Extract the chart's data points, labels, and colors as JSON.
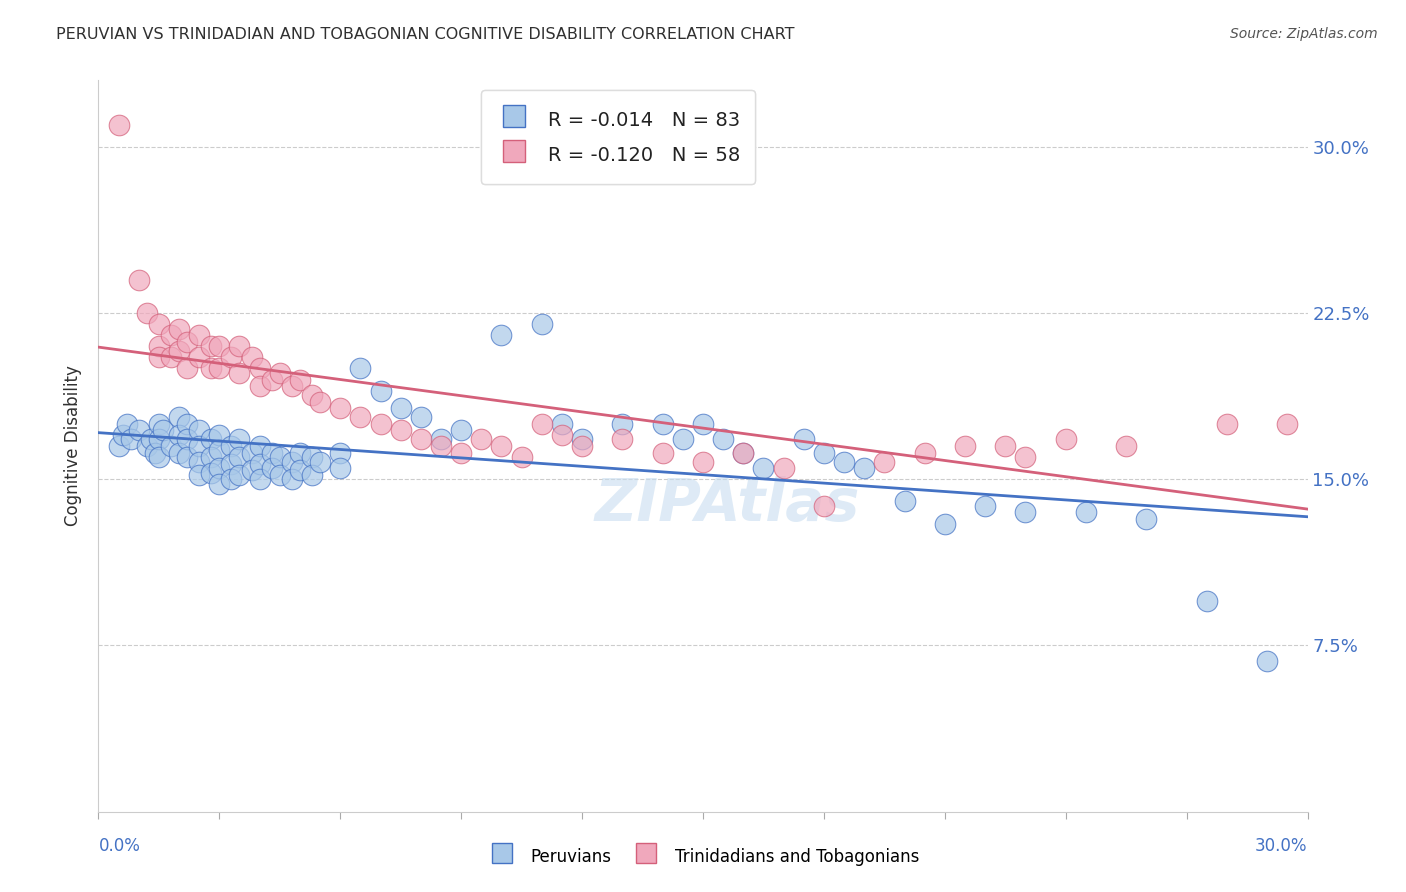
{
  "title": "PERUVIAN VS TRINIDADIAN AND TOBAGONIAN COGNITIVE DISABILITY CORRELATION CHART",
  "source": "Source: ZipAtlas.com",
  "ylabel": "Cognitive Disability",
  "blue_color": "#a8c8e8",
  "pink_color": "#f0a8bc",
  "blue_line_color": "#4472c4",
  "pink_line_color": "#d4607a",
  "title_color": "#303030",
  "axis_label_color": "#4472c4",
  "xlim": [
    0.0,
    0.3
  ],
  "ylim": [
    0.0,
    0.33
  ],
  "yticks": [
    0.075,
    0.15,
    0.225,
    0.3
  ],
  "ytick_labels": [
    "7.5%",
    "15.0%",
    "22.5%",
    "30.0%"
  ],
  "peruvians": [
    [
      0.005,
      0.165
    ],
    [
      0.006,
      0.17
    ],
    [
      0.007,
      0.175
    ],
    [
      0.008,
      0.168
    ],
    [
      0.01,
      0.172
    ],
    [
      0.012,
      0.165
    ],
    [
      0.013,
      0.168
    ],
    [
      0.014,
      0.162
    ],
    [
      0.015,
      0.175
    ],
    [
      0.015,
      0.168
    ],
    [
      0.015,
      0.16
    ],
    [
      0.016,
      0.172
    ],
    [
      0.018,
      0.165
    ],
    [
      0.02,
      0.178
    ],
    [
      0.02,
      0.17
    ],
    [
      0.02,
      0.162
    ],
    [
      0.022,
      0.175
    ],
    [
      0.022,
      0.168
    ],
    [
      0.022,
      0.16
    ],
    [
      0.025,
      0.172
    ],
    [
      0.025,
      0.165
    ],
    [
      0.025,
      0.158
    ],
    [
      0.025,
      0.152
    ],
    [
      0.028,
      0.168
    ],
    [
      0.028,
      0.16
    ],
    [
      0.028,
      0.153
    ],
    [
      0.03,
      0.17
    ],
    [
      0.03,
      0.163
    ],
    [
      0.03,
      0.155
    ],
    [
      0.03,
      0.148
    ],
    [
      0.033,
      0.165
    ],
    [
      0.033,
      0.157
    ],
    [
      0.033,
      0.15
    ],
    [
      0.035,
      0.168
    ],
    [
      0.035,
      0.16
    ],
    [
      0.035,
      0.152
    ],
    [
      0.038,
      0.162
    ],
    [
      0.038,
      0.154
    ],
    [
      0.04,
      0.165
    ],
    [
      0.04,
      0.157
    ],
    [
      0.04,
      0.15
    ],
    [
      0.043,
      0.162
    ],
    [
      0.043,
      0.155
    ],
    [
      0.045,
      0.16
    ],
    [
      0.045,
      0.152
    ],
    [
      0.048,
      0.158
    ],
    [
      0.048,
      0.15
    ],
    [
      0.05,
      0.162
    ],
    [
      0.05,
      0.154
    ],
    [
      0.053,
      0.16
    ],
    [
      0.053,
      0.152
    ],
    [
      0.055,
      0.158
    ],
    [
      0.06,
      0.162
    ],
    [
      0.06,
      0.155
    ],
    [
      0.065,
      0.2
    ],
    [
      0.07,
      0.19
    ],
    [
      0.075,
      0.182
    ],
    [
      0.08,
      0.178
    ],
    [
      0.085,
      0.168
    ],
    [
      0.09,
      0.172
    ],
    [
      0.1,
      0.215
    ],
    [
      0.11,
      0.22
    ],
    [
      0.115,
      0.175
    ],
    [
      0.12,
      0.168
    ],
    [
      0.13,
      0.175
    ],
    [
      0.14,
      0.175
    ],
    [
      0.145,
      0.168
    ],
    [
      0.15,
      0.175
    ],
    [
      0.155,
      0.168
    ],
    [
      0.16,
      0.162
    ],
    [
      0.165,
      0.155
    ],
    [
      0.175,
      0.168
    ],
    [
      0.18,
      0.162
    ],
    [
      0.185,
      0.158
    ],
    [
      0.19,
      0.155
    ],
    [
      0.2,
      0.14
    ],
    [
      0.21,
      0.13
    ],
    [
      0.22,
      0.138
    ],
    [
      0.23,
      0.135
    ],
    [
      0.245,
      0.135
    ],
    [
      0.26,
      0.132
    ],
    [
      0.275,
      0.095
    ],
    [
      0.29,
      0.068
    ]
  ],
  "trinidadians": [
    [
      0.005,
      0.31
    ],
    [
      0.01,
      0.24
    ],
    [
      0.012,
      0.225
    ],
    [
      0.015,
      0.22
    ],
    [
      0.015,
      0.21
    ],
    [
      0.015,
      0.205
    ],
    [
      0.018,
      0.215
    ],
    [
      0.018,
      0.205
    ],
    [
      0.02,
      0.218
    ],
    [
      0.02,
      0.208
    ],
    [
      0.022,
      0.212
    ],
    [
      0.022,
      0.2
    ],
    [
      0.025,
      0.215
    ],
    [
      0.025,
      0.205
    ],
    [
      0.028,
      0.21
    ],
    [
      0.028,
      0.2
    ],
    [
      0.03,
      0.21
    ],
    [
      0.03,
      0.2
    ],
    [
      0.033,
      0.205
    ],
    [
      0.035,
      0.21
    ],
    [
      0.035,
      0.198
    ],
    [
      0.038,
      0.205
    ],
    [
      0.04,
      0.2
    ],
    [
      0.04,
      0.192
    ],
    [
      0.043,
      0.195
    ],
    [
      0.045,
      0.198
    ],
    [
      0.048,
      0.192
    ],
    [
      0.05,
      0.195
    ],
    [
      0.053,
      0.188
    ],
    [
      0.055,
      0.185
    ],
    [
      0.06,
      0.182
    ],
    [
      0.065,
      0.178
    ],
    [
      0.07,
      0.175
    ],
    [
      0.075,
      0.172
    ],
    [
      0.08,
      0.168
    ],
    [
      0.085,
      0.165
    ],
    [
      0.09,
      0.162
    ],
    [
      0.095,
      0.168
    ],
    [
      0.1,
      0.165
    ],
    [
      0.105,
      0.16
    ],
    [
      0.11,
      0.175
    ],
    [
      0.115,
      0.17
    ],
    [
      0.12,
      0.165
    ],
    [
      0.13,
      0.168
    ],
    [
      0.14,
      0.162
    ],
    [
      0.15,
      0.158
    ],
    [
      0.16,
      0.162
    ],
    [
      0.17,
      0.155
    ],
    [
      0.18,
      0.138
    ],
    [
      0.195,
      0.158
    ],
    [
      0.205,
      0.162
    ],
    [
      0.215,
      0.165
    ],
    [
      0.225,
      0.165
    ],
    [
      0.23,
      0.16
    ],
    [
      0.24,
      0.168
    ],
    [
      0.255,
      0.165
    ],
    [
      0.28,
      0.175
    ],
    [
      0.295,
      0.175
    ]
  ]
}
